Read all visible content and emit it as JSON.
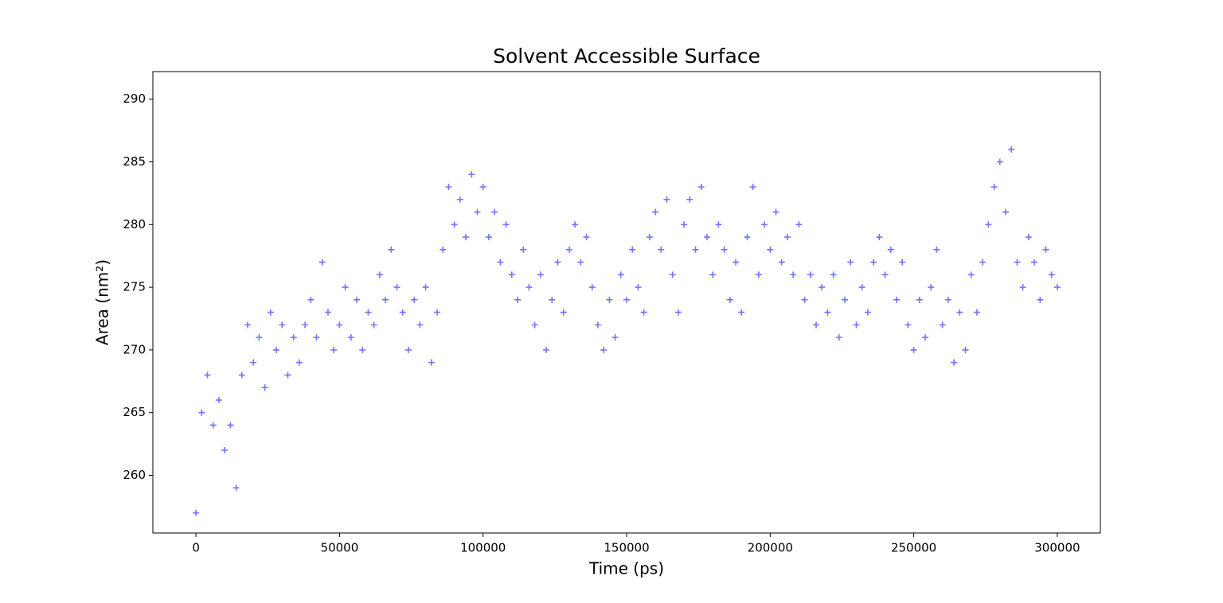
{
  "chart_data": {
    "type": "scatter",
    "title": "Solvent Accessible Surface",
    "x_label": "Time (ps)",
    "y_label": "Area (nm²)",
    "x": [
      0,
      2000,
      4000,
      6000,
      8000,
      10000,
      12000,
      14000,
      16000,
      18000,
      20000,
      22000,
      24000,
      26000,
      28000,
      30000,
      32000,
      34000,
      36000,
      38000,
      40000,
      42000,
      44000,
      46000,
      48000,
      50000,
      52000,
      54000,
      56000,
      58000,
      60000,
      62000,
      64000,
      66000,
      68000,
      70000,
      72000,
      74000,
      76000,
      78000,
      80000,
      82000,
      84000,
      86000,
      88000,
      90000,
      92000,
      94000,
      96000,
      98000,
      100000,
      102000,
      104000,
      106000,
      108000,
      110000,
      112000,
      114000,
      116000,
      118000,
      120000,
      122000,
      124000,
      126000,
      128000,
      130000,
      132000,
      134000,
      136000,
      138000,
      140000,
      142000,
      144000,
      146000,
      148000,
      150000,
      152000,
      154000,
      156000,
      158000,
      160000,
      162000,
      164000,
      166000,
      168000,
      170000,
      172000,
      174000,
      176000,
      178000,
      180000,
      182000,
      184000,
      186000,
      188000,
      190000,
      192000,
      194000,
      196000,
      198000,
      200000,
      202000,
      204000,
      206000,
      208000,
      210000,
      212000,
      214000,
      216000,
      218000,
      220000,
      222000,
      224000,
      226000,
      228000,
      230000,
      232000,
      234000,
      236000,
      238000,
      240000,
      242000,
      244000,
      246000,
      248000,
      250000,
      252000,
      254000,
      256000,
      258000,
      260000,
      262000,
      264000,
      266000,
      268000,
      270000,
      272000,
      274000,
      276000,
      278000,
      280000,
      282000,
      284000,
      286000,
      288000,
      290000,
      292000,
      294000,
      296000,
      298000,
      300000
    ],
    "series": [
      {
        "color": "#0000ff",
        "values": [
          257,
          265,
          268,
          264,
          266,
          262,
          264,
          259,
          268,
          272,
          269,
          271,
          267,
          273,
          270,
          272,
          268,
          271,
          269,
          272,
          274,
          271,
          277,
          273,
          270,
          272,
          275,
          271,
          274,
          270,
          273,
          272,
          276,
          274,
          278,
          275,
          273,
          270,
          274,
          272,
          275,
          269,
          273,
          278,
          283,
          280,
          282,
          279,
          284,
          281,
          283,
          279,
          281,
          277,
          280,
          276,
          274,
          278,
          275,
          272,
          276,
          270,
          274,
          277,
          273,
          278,
          280,
          277,
          279,
          275,
          272,
          270,
          274,
          271,
          276,
          274,
          278,
          275,
          273,
          279,
          281,
          278,
          282,
          276,
          273,
          280,
          282,
          278,
          283,
          279,
          276,
          280,
          278,
          274,
          277,
          273,
          279,
          283,
          276,
          280,
          278,
          281,
          277,
          279,
          276,
          280,
          274,
          276,
          272,
          275,
          273,
          276,
          271,
          274,
          277,
          272,
          275,
          273,
          277,
          279,
          276,
          278,
          274,
          277,
          272,
          270,
          274,
          271,
          275,
          278,
          272,
          274,
          269,
          273,
          270,
          276,
          273,
          277,
          280,
          283,
          285,
          281,
          286,
          277,
          275,
          279,
          277,
          274,
          278,
          276,
          275
        ]
      }
    ],
    "xlim": [
      -15000,
      315000
    ],
    "ylim": [
      255.4,
      292.2
    ],
    "xticks": [
      0,
      50000,
      100000,
      150000,
      200000,
      250000,
      300000
    ],
    "yticks": [
      260,
      265,
      270,
      275,
      280,
      285,
      290
    ],
    "marker": "+"
  }
}
